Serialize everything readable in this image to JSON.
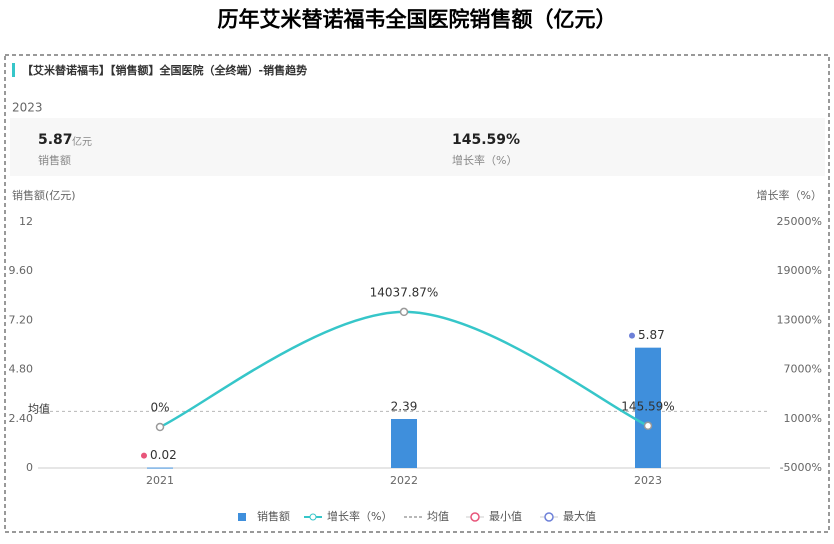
{
  "page": {
    "title": "历年艾米替诺福韦全国医院销售额（亿元）",
    "panel_title": "【艾米替诺福韦】【销售额】全国医院（全终端）-销售趋势",
    "year": "2023",
    "summary": [
      {
        "value": "5.87",
        "unit": "亿元",
        "label": "销售额"
      },
      {
        "value": "145.59%",
        "label": "增长率（%）"
      }
    ]
  },
  "chart_data": {
    "type": "bar",
    "y_label": "销售额(亿元)",
    "y2_label": "增长率（%）",
    "categories": [
      "2021",
      "2022",
      "2023"
    ],
    "series": [
      {
        "name": "销售额",
        "type": "bar",
        "color": "#3f8fdc",
        "values": [
          0.02,
          2.39,
          5.87
        ]
      },
      {
        "name": "增长率（%）",
        "type": "line",
        "axis": "y2",
        "color": "#36c6c9",
        "values": [
          0,
          14037.87,
          145.59
        ],
        "value_labels": [
          "0%",
          "14037.87%",
          "145.59%"
        ]
      }
    ],
    "average": {
      "name": "均值",
      "value": 2.76,
      "color": "#b8b8b8"
    },
    "min_marker": {
      "name": "最小值",
      "color": "#e8557a"
    },
    "max_marker": {
      "name": "最大值",
      "color": "#6d80d8"
    },
    "ylim": [
      0,
      12
    ],
    "yticks": [
      0,
      {
        "value": 2.4,
        "label": "2.40"
      },
      {
        "value": 4.8,
        "label": "4.80"
      },
      {
        "value": 7.2,
        "label": "7.20"
      },
      {
        "value": 9.6,
        "label": "9.60"
      },
      12
    ],
    "y2lim": [
      -5000,
      25000
    ],
    "y2ticks": [
      {
        "value": -5000,
        "label": "-5000%"
      },
      {
        "value": 1000,
        "label": "1000%"
      },
      {
        "value": 7000,
        "label": "7000%"
      },
      {
        "value": 13000,
        "label": "13000%"
      },
      {
        "value": 19000,
        "label": "19000%"
      },
      {
        "value": 25000,
        "label": "25000%"
      }
    ]
  }
}
